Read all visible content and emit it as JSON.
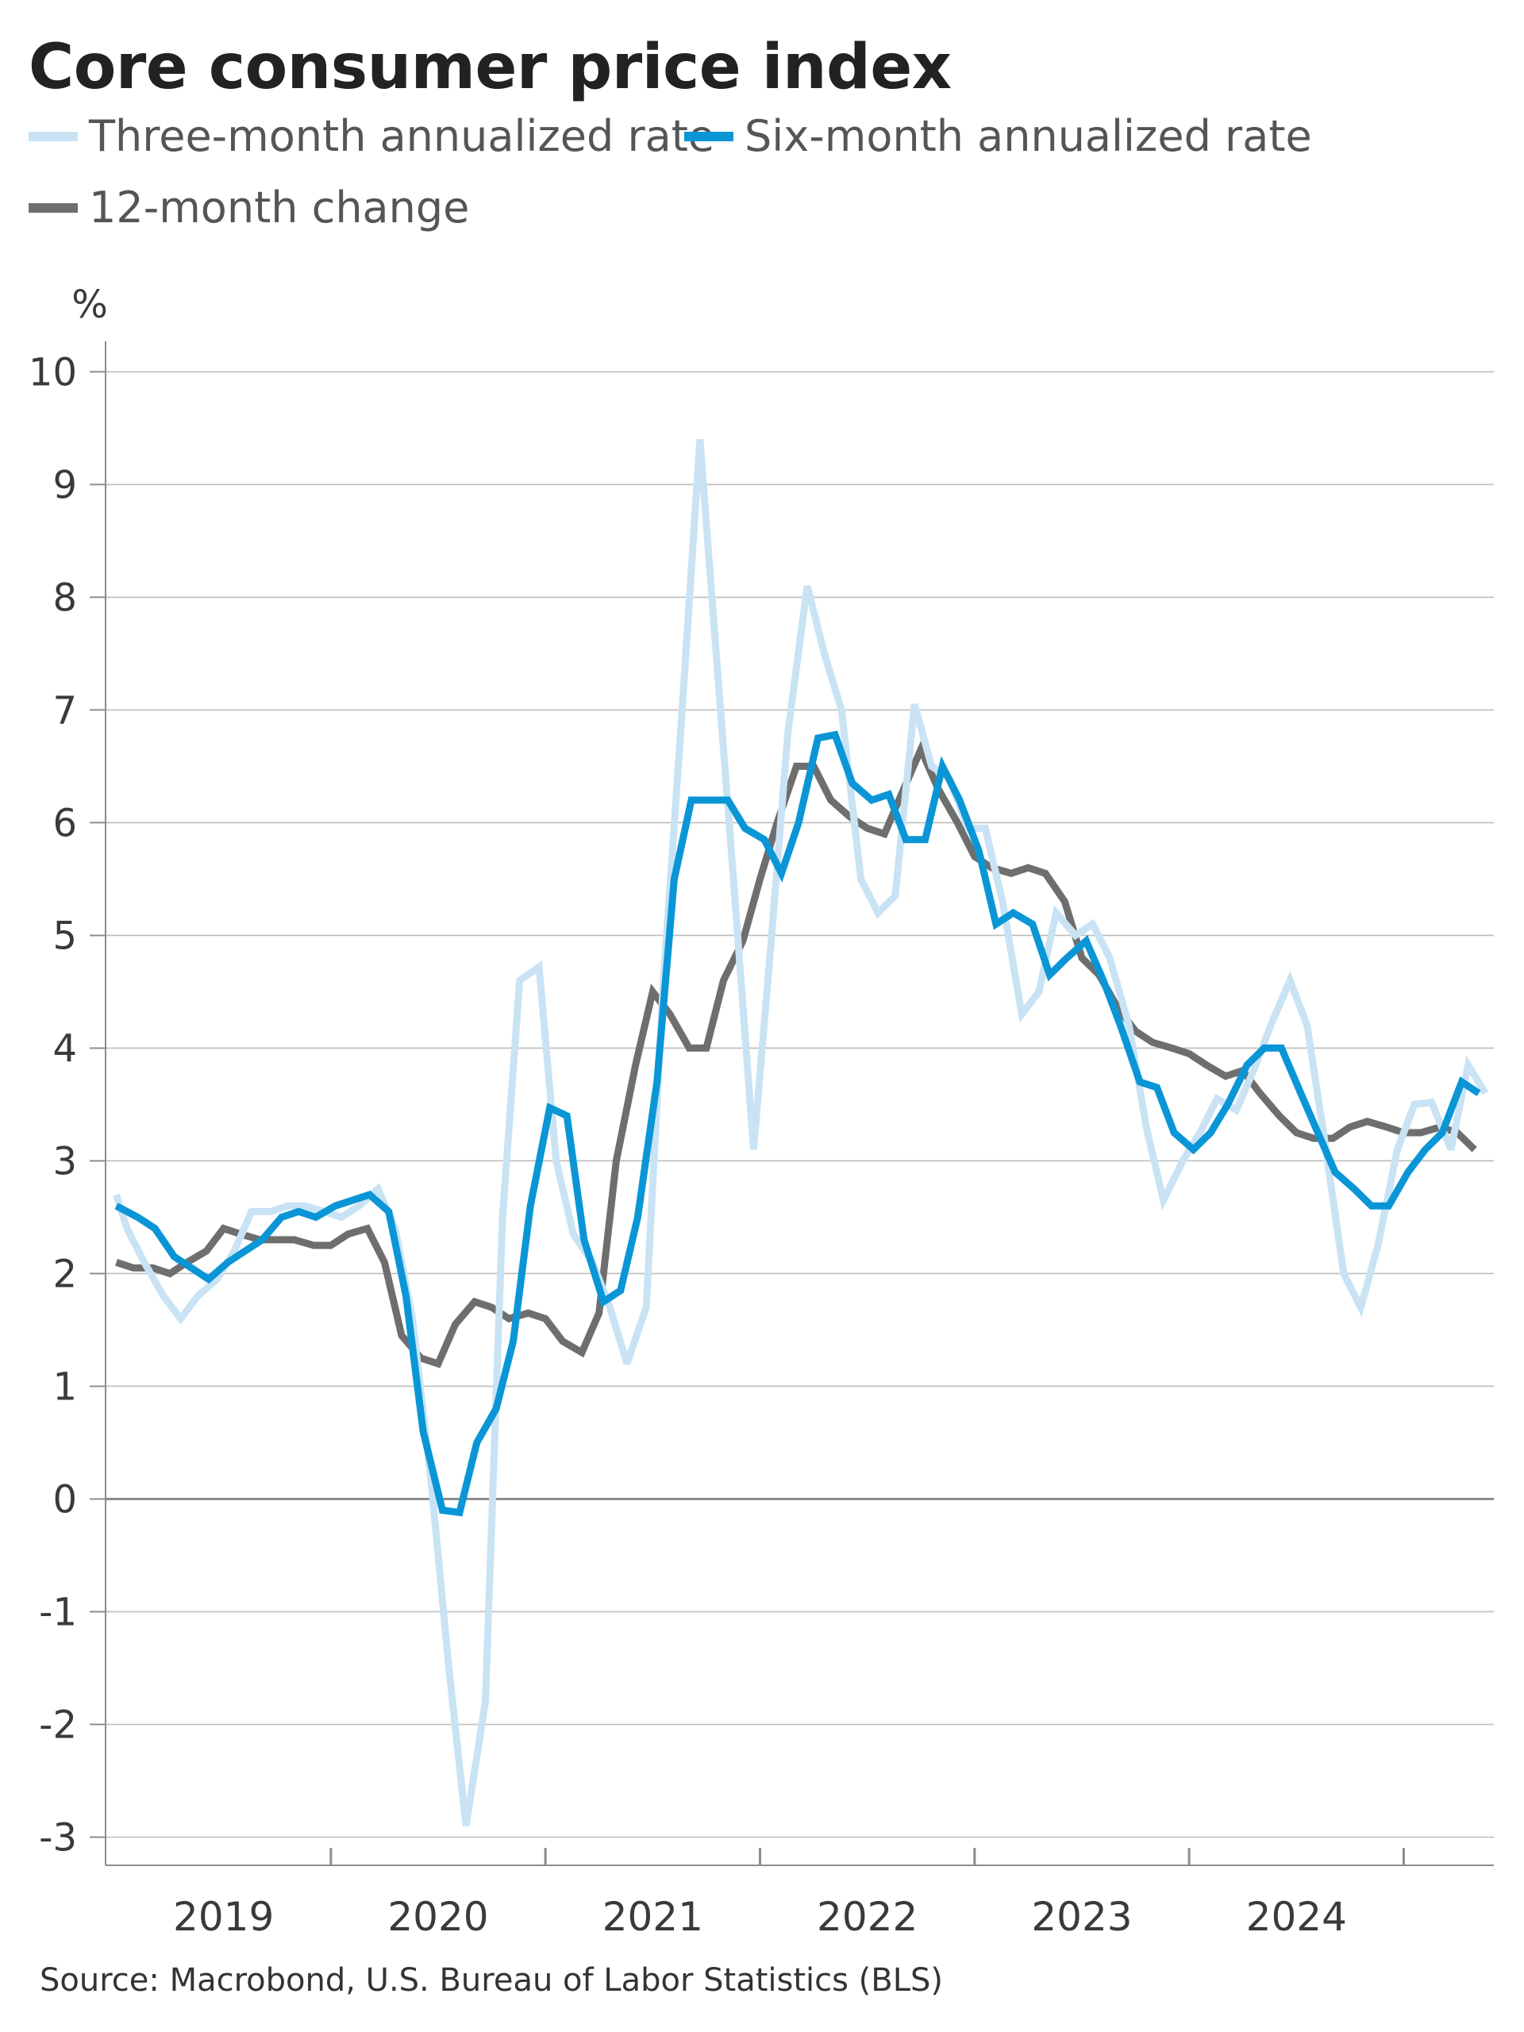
{
  "chart_data": {
    "type": "line",
    "title": "Core consumer price index",
    "ylabel": "%",
    "xlabel": "",
    "ylim": [
      -3.25,
      10.2
    ],
    "xlim": [
      2018.45,
      2024.92
    ],
    "yticks": [
      10,
      9,
      8,
      7,
      6,
      5,
      4,
      3,
      2,
      1,
      0,
      -1,
      -2,
      -3
    ],
    "ytick_labels": [
      "10",
      "9",
      "8",
      "7",
      "6",
      "5",
      "4",
      "3",
      "2",
      "1",
      "0",
      "-1",
      "-2",
      "-3"
    ],
    "x_major_ticks": [
      2019.5,
      2020.5,
      2021.5,
      2022.5,
      2023.5,
      2024.5
    ],
    "x_category_labels": [
      {
        "label": "2019",
        "x": 2019.0
      },
      {
        "label": "2020",
        "x": 2020.0
      },
      {
        "label": "2021",
        "x": 2021.0
      },
      {
        "label": "2022",
        "x": 2022.0
      },
      {
        "label": "2023",
        "x": 2023.0
      },
      {
        "label": "2024",
        "x": 2024.0
      }
    ],
    "grid": true,
    "legend_position": "top-left",
    "series": [
      {
        "name": "Three-month annualized rate",
        "color": "#c9e3f5",
        "points": [
          [
            2018.5,
            2.7
          ],
          [
            2018.55,
            2.4
          ],
          [
            2018.63,
            2.1
          ],
          [
            2018.72,
            1.8
          ],
          [
            2018.8,
            1.6
          ],
          [
            2018.88,
            1.8
          ],
          [
            2018.97,
            1.95
          ],
          [
            2019.05,
            2.2
          ],
          [
            2019.13,
            2.55
          ],
          [
            2019.22,
            2.55
          ],
          [
            2019.3,
            2.6
          ],
          [
            2019.38,
            2.6
          ],
          [
            2019.47,
            2.55
          ],
          [
            2019.55,
            2.5
          ],
          [
            2019.63,
            2.6
          ],
          [
            2019.72,
            2.75
          ],
          [
            2019.8,
            2.4
          ],
          [
            2019.88,
            1.6
          ],
          [
            2019.97,
            0.1
          ],
          [
            2020.05,
            -1.5
          ],
          [
            2020.13,
            -2.9
          ],
          [
            2020.22,
            -1.8
          ],
          [
            2020.3,
            2.5
          ],
          [
            2020.38,
            4.6
          ],
          [
            2020.47,
            4.72
          ],
          [
            2020.55,
            3.0
          ],
          [
            2020.63,
            2.35
          ],
          [
            2020.72,
            2.1
          ],
          [
            2020.8,
            1.7
          ],
          [
            2020.88,
            1.2
          ],
          [
            2020.97,
            1.7
          ],
          [
            2021.05,
            4.6
          ],
          [
            2021.13,
            6.8
          ],
          [
            2021.22,
            9.4
          ],
          [
            2021.3,
            7.4
          ],
          [
            2021.38,
            5.4
          ],
          [
            2021.47,
            3.1
          ],
          [
            2021.55,
            4.9
          ],
          [
            2021.63,
            6.8
          ],
          [
            2021.72,
            8.1
          ],
          [
            2021.8,
            7.5
          ],
          [
            2021.88,
            7.0
          ],
          [
            2021.97,
            5.5
          ],
          [
            2022.05,
            5.2
          ],
          [
            2022.13,
            5.35
          ],
          [
            2022.22,
            7.05
          ],
          [
            2022.3,
            6.5
          ],
          [
            2022.38,
            6.4
          ],
          [
            2022.47,
            5.95
          ],
          [
            2022.55,
            5.95
          ],
          [
            2022.63,
            5.3
          ],
          [
            2022.72,
            4.3
          ],
          [
            2022.8,
            4.5
          ],
          [
            2022.88,
            5.2
          ],
          [
            2022.97,
            5.0
          ],
          [
            2023.05,
            5.1
          ],
          [
            2023.13,
            4.8
          ],
          [
            2023.22,
            4.2
          ],
          [
            2023.3,
            3.3
          ],
          [
            2023.38,
            2.65
          ],
          [
            2023.47,
            3.0
          ],
          [
            2023.55,
            3.25
          ],
          [
            2023.63,
            3.55
          ],
          [
            2023.72,
            3.45
          ],
          [
            2023.8,
            3.8
          ],
          [
            2023.88,
            4.2
          ],
          [
            2023.97,
            4.6
          ],
          [
            2024.05,
            4.2
          ],
          [
            2024.13,
            3.2
          ],
          [
            2024.22,
            2.0
          ],
          [
            2024.3,
            1.7
          ],
          [
            2024.38,
            2.25
          ],
          [
            2024.47,
            3.1
          ],
          [
            2024.55,
            3.5
          ],
          [
            2024.63,
            3.52
          ],
          [
            2024.72,
            3.1
          ],
          [
            2024.8,
            3.85
          ],
          [
            2024.88,
            3.6
          ]
        ]
      },
      {
        "name": "Six-month annualized rate",
        "color": "#0a96d6",
        "points": [
          [
            2018.5,
            2.6
          ],
          [
            2018.6,
            2.5
          ],
          [
            2018.68,
            2.4
          ],
          [
            2018.77,
            2.15
          ],
          [
            2018.85,
            2.05
          ],
          [
            2018.93,
            1.95
          ],
          [
            2019.02,
            2.1
          ],
          [
            2019.1,
            2.2
          ],
          [
            2019.18,
            2.3
          ],
          [
            2019.27,
            2.5
          ],
          [
            2019.35,
            2.55
          ],
          [
            2019.43,
            2.5
          ],
          [
            2019.52,
            2.6
          ],
          [
            2019.6,
            2.65
          ],
          [
            2019.68,
            2.7
          ],
          [
            2019.77,
            2.55
          ],
          [
            2019.85,
            1.8
          ],
          [
            2019.93,
            0.6
          ],
          [
            2020.02,
            -0.1
          ],
          [
            2020.1,
            -0.12
          ],
          [
            2020.18,
            0.5
          ],
          [
            2020.27,
            0.8
          ],
          [
            2020.35,
            1.4
          ],
          [
            2020.43,
            2.6
          ],
          [
            2020.52,
            3.47
          ],
          [
            2020.6,
            3.4
          ],
          [
            2020.68,
            2.3
          ],
          [
            2020.77,
            1.75
          ],
          [
            2020.85,
            1.85
          ],
          [
            2020.93,
            2.5
          ],
          [
            2021.02,
            3.7
          ],
          [
            2021.1,
            5.5
          ],
          [
            2021.18,
            6.2
          ],
          [
            2021.27,
            6.2
          ],
          [
            2021.35,
            6.2
          ],
          [
            2021.43,
            5.95
          ],
          [
            2021.52,
            5.85
          ],
          [
            2021.6,
            5.55
          ],
          [
            2021.68,
            6.0
          ],
          [
            2021.77,
            6.75
          ],
          [
            2021.85,
            6.78
          ],
          [
            2021.93,
            6.35
          ],
          [
            2022.02,
            6.2
          ],
          [
            2022.1,
            6.25
          ],
          [
            2022.18,
            5.85
          ],
          [
            2022.27,
            5.85
          ],
          [
            2022.35,
            6.5
          ],
          [
            2022.43,
            6.2
          ],
          [
            2022.52,
            5.75
          ],
          [
            2022.6,
            5.1
          ],
          [
            2022.68,
            5.2
          ],
          [
            2022.77,
            5.1
          ],
          [
            2022.85,
            4.65
          ],
          [
            2022.93,
            4.8
          ],
          [
            2023.02,
            4.95
          ],
          [
            2023.1,
            4.6
          ],
          [
            2023.18,
            4.2
          ],
          [
            2023.27,
            3.7
          ],
          [
            2023.35,
            3.65
          ],
          [
            2023.43,
            3.25
          ],
          [
            2023.52,
            3.1
          ],
          [
            2023.6,
            3.25
          ],
          [
            2023.68,
            3.5
          ],
          [
            2023.77,
            3.85
          ],
          [
            2023.85,
            4.0
          ],
          [
            2023.93,
            4.0
          ],
          [
            2024.02,
            3.6
          ],
          [
            2024.1,
            3.25
          ],
          [
            2024.18,
            2.9
          ],
          [
            2024.27,
            2.75
          ],
          [
            2024.35,
            2.6
          ],
          [
            2024.43,
            2.6
          ],
          [
            2024.52,
            2.9
          ],
          [
            2024.6,
            3.1
          ],
          [
            2024.68,
            3.25
          ],
          [
            2024.77,
            3.7
          ],
          [
            2024.85,
            3.6
          ]
        ]
      },
      {
        "name": "12-month change",
        "color": "#6e6e6e",
        "points": [
          [
            2018.5,
            2.1
          ],
          [
            2018.58,
            2.05
          ],
          [
            2018.67,
            2.05
          ],
          [
            2018.75,
            2.0
          ],
          [
            2018.83,
            2.1
          ],
          [
            2018.92,
            2.2
          ],
          [
            2019.0,
            2.4
          ],
          [
            2019.08,
            2.35
          ],
          [
            2019.17,
            2.3
          ],
          [
            2019.25,
            2.3
          ],
          [
            2019.33,
            2.3
          ],
          [
            2019.42,
            2.25
          ],
          [
            2019.5,
            2.25
          ],
          [
            2019.58,
            2.35
          ],
          [
            2019.67,
            2.4
          ],
          [
            2019.75,
            2.1
          ],
          [
            2019.83,
            1.45
          ],
          [
            2019.92,
            1.25
          ],
          [
            2020.0,
            1.2
          ],
          [
            2020.08,
            1.55
          ],
          [
            2020.17,
            1.75
          ],
          [
            2020.25,
            1.7
          ],
          [
            2020.33,
            1.6
          ],
          [
            2020.42,
            1.65
          ],
          [
            2020.5,
            1.6
          ],
          [
            2020.58,
            1.4
          ],
          [
            2020.67,
            1.3
          ],
          [
            2020.75,
            1.65
          ],
          [
            2020.83,
            3.0
          ],
          [
            2020.92,
            3.85
          ],
          [
            2021.0,
            4.5
          ],
          [
            2021.08,
            4.3
          ],
          [
            2021.17,
            4.0
          ],
          [
            2021.25,
            4.0
          ],
          [
            2021.33,
            4.6
          ],
          [
            2021.42,
            4.95
          ],
          [
            2021.5,
            5.5
          ],
          [
            2021.58,
            6.0
          ],
          [
            2021.67,
            6.5
          ],
          [
            2021.75,
            6.5
          ],
          [
            2021.83,
            6.2
          ],
          [
            2021.92,
            6.05
          ],
          [
            2022.0,
            5.95
          ],
          [
            2022.08,
            5.9
          ],
          [
            2022.17,
            6.3
          ],
          [
            2022.25,
            6.65
          ],
          [
            2022.33,
            6.3
          ],
          [
            2022.42,
            6.0
          ],
          [
            2022.5,
            5.7
          ],
          [
            2022.58,
            5.6
          ],
          [
            2022.67,
            5.55
          ],
          [
            2022.75,
            5.6
          ],
          [
            2022.83,
            5.55
          ],
          [
            2022.92,
            5.3
          ],
          [
            2023.0,
            4.8
          ],
          [
            2023.08,
            4.65
          ],
          [
            2023.17,
            4.35
          ],
          [
            2023.25,
            4.15
          ],
          [
            2023.33,
            4.05
          ],
          [
            2023.42,
            4.0
          ],
          [
            2023.5,
            3.95
          ],
          [
            2023.58,
            3.85
          ],
          [
            2023.67,
            3.75
          ],
          [
            2023.75,
            3.8
          ],
          [
            2023.83,
            3.6
          ],
          [
            2023.92,
            3.4
          ],
          [
            2024.0,
            3.25
          ],
          [
            2024.08,
            3.2
          ],
          [
            2024.17,
            3.2
          ],
          [
            2024.25,
            3.3
          ],
          [
            2024.33,
            3.35
          ],
          [
            2024.42,
            3.3
          ],
          [
            2024.5,
            3.25
          ],
          [
            2024.58,
            3.25
          ],
          [
            2024.67,
            3.3
          ],
          [
            2024.75,
            3.25
          ],
          [
            2024.83,
            3.1
          ]
        ]
      }
    ]
  },
  "source_note": "Source: Macrobond, U.S. Bureau of Labor Statistics (BLS)",
  "colors": {
    "zero_line": "#8c8c8c",
    "grid": "#bdbdbd",
    "axis": "#8c8c8c",
    "text": "#3a3a3a"
  }
}
